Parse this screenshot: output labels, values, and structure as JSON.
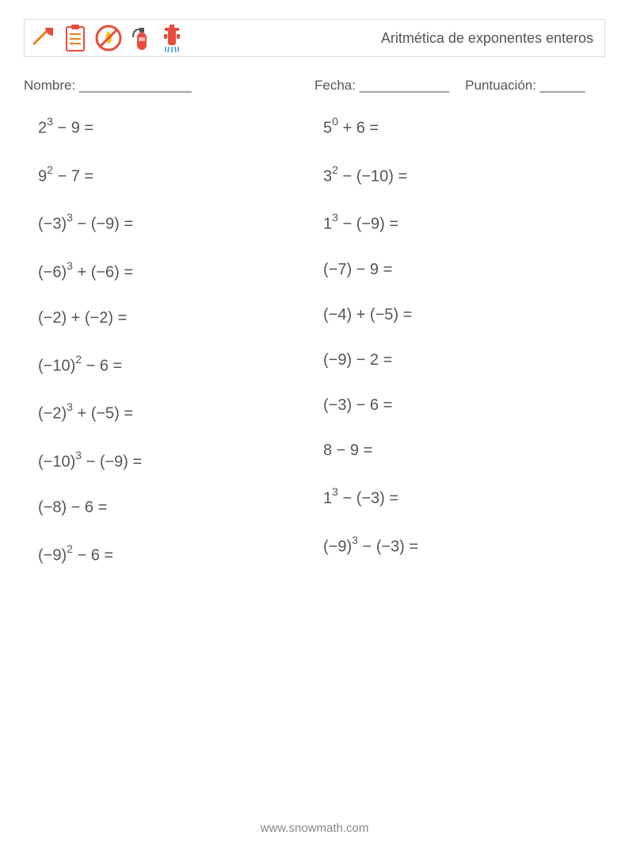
{
  "header": {
    "title": "Aritmética de exponentes enteros"
  },
  "info": {
    "name_label": "Nombre: _______________",
    "date_label": "Fecha: ____________",
    "score_label": "Puntuación: ______"
  },
  "problems_left": [
    [
      {
        "b": "2",
        "e": "3"
      },
      " − 9 ="
    ],
    [
      {
        "b": "9",
        "e": "2"
      },
      " − 7 ="
    ],
    [
      {
        "b": "(−3)",
        "e": "3"
      },
      " − (−9) ="
    ],
    [
      {
        "b": "(−6)",
        "e": "3"
      },
      " + (−6) ="
    ],
    [
      "(−2) + (−2) ="
    ],
    [
      {
        "b": "(−10)",
        "e": "2"
      },
      " − 6 ="
    ],
    [
      {
        "b": "(−2)",
        "e": "3"
      },
      " + (−5) ="
    ],
    [
      {
        "b": "(−10)",
        "e": "3"
      },
      " − (−9) ="
    ],
    [
      "(−8) − 6 ="
    ],
    [
      {
        "b": "(−9)",
        "e": "2"
      },
      " − 6 ="
    ]
  ],
  "problems_right": [
    [
      {
        "b": "5",
        "e": "0"
      },
      " + 6 ="
    ],
    [
      {
        "b": "3",
        "e": "2"
      },
      " − (−10) ="
    ],
    [
      {
        "b": "1",
        "e": "3"
      },
      " − (−9) ="
    ],
    [
      "(−7) − 9 ="
    ],
    [
      "(−4) + (−5) ="
    ],
    [
      "(−9) − 2 ="
    ],
    [
      "(−3) − 6 ="
    ],
    [
      "8 − 9 ="
    ],
    [
      {
        "b": "1",
        "e": "3"
      },
      " − (−3) ="
    ],
    [
      {
        "b": "(−9)",
        "e": "3"
      },
      " − (−3) ="
    ]
  ],
  "footer": "www.snowmath.com",
  "colors": {
    "text": "#555555",
    "border": "#cccccc",
    "icon_red": "#e84c3d",
    "icon_orange": "#e67e22",
    "icon_blue": "#3498db"
  }
}
